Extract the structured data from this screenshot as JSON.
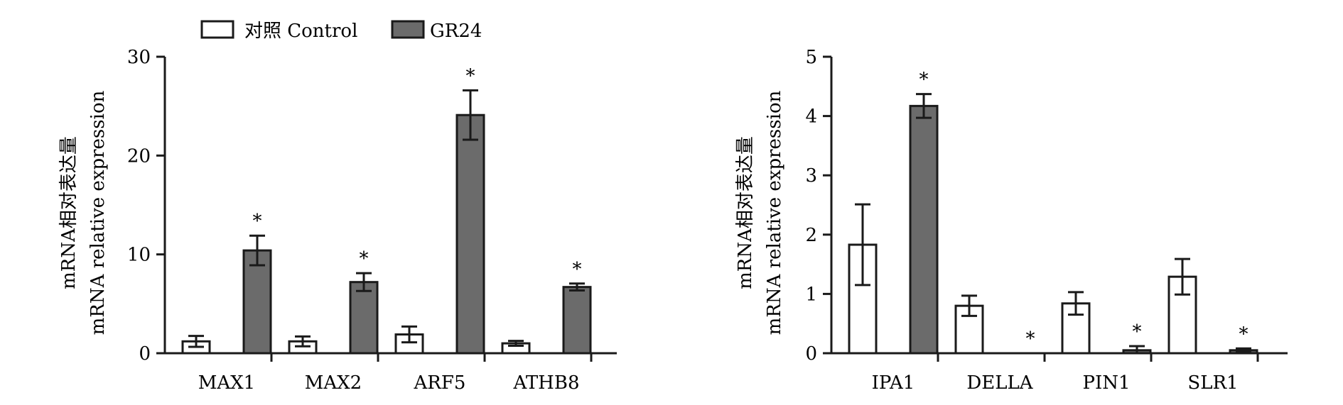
{
  "legend": {
    "placement": "top-left",
    "items": [
      {
        "label": "对照 Control",
        "fill": "#ffffff"
      },
      {
        "label": "GR24",
        "fill": "#6b6b6b"
      }
    ]
  },
  "colors": {
    "control": "#ffffff",
    "gr24": "#6b6b6b",
    "stroke": "#1a1a1a"
  },
  "chart_data": [
    {
      "type": "bar",
      "title": "",
      "xlabel": "",
      "ylabel": [
        "mRNA相对表达量",
        "mRNA relative expression"
      ],
      "ylim": [
        0,
        30
      ],
      "yticks": [
        0,
        10,
        20,
        30
      ],
      "grid": false,
      "categories": [
        "MAX1",
        "MAX2",
        "ARF5",
        "ATHB8"
      ],
      "series": [
        {
          "name": "对照 Control",
          "values": [
            1.2,
            1.2,
            1.9,
            1.0
          ],
          "errors": [
            0.55,
            0.5,
            0.8,
            0.25
          ],
          "significant": [
            false,
            false,
            false,
            false
          ]
        },
        {
          "name": "GR24",
          "values": [
            10.4,
            7.2,
            24.1,
            6.7
          ],
          "errors": [
            1.5,
            0.9,
            2.5,
            0.35
          ],
          "significant": [
            true,
            true,
            true,
            true
          ]
        }
      ],
      "significance_mark": "*"
    },
    {
      "type": "bar",
      "title": "",
      "xlabel": "",
      "ylabel": [
        "mRNA相对表达量",
        "mRNA relative expression"
      ],
      "ylim": [
        0,
        5
      ],
      "yticks": [
        0,
        1,
        2,
        3,
        4,
        5
      ],
      "grid": false,
      "categories": [
        "IPA1",
        "DELLA",
        "PIN1",
        "SLR1"
      ],
      "series": [
        {
          "name": "对照 Control",
          "values": [
            1.83,
            0.8,
            0.84,
            1.29
          ],
          "errors": [
            0.68,
            0.17,
            0.19,
            0.3
          ],
          "significant": [
            false,
            false,
            false,
            false
          ]
        },
        {
          "name": "GR24",
          "values": [
            4.17,
            0.0,
            0.05,
            0.05
          ],
          "errors": [
            0.2,
            0.0,
            0.07,
            0.03
          ],
          "significant": [
            true,
            true,
            true,
            true
          ]
        }
      ],
      "significance_mark": "*"
    }
  ]
}
